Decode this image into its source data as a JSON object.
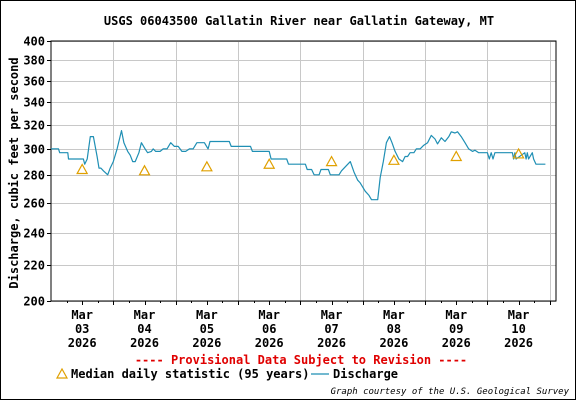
{
  "chart_data": {
    "type": "line",
    "title": "USGS 06043500 Gallatin River near Gallatin Gateway, MT",
    "ylabel": "Discharge, cubic feet per second",
    "xlabel": "",
    "ylim": [
      200,
      400
    ],
    "y_scale": "log",
    "y_ticks": [
      200,
      220,
      240,
      260,
      280,
      300,
      320,
      340,
      360,
      380,
      400
    ],
    "xlim": [
      0,
      8.1
    ],
    "x_ticks": [
      {
        "pos": 0.5,
        "month": "Mar",
        "day": "03",
        "year": "2026"
      },
      {
        "pos": 1.5,
        "month": "Mar",
        "day": "04",
        "year": "2026"
      },
      {
        "pos": 2.5,
        "month": "Mar",
        "day": "05",
        "year": "2026"
      },
      {
        "pos": 3.5,
        "month": "Mar",
        "day": "06",
        "year": "2026"
      },
      {
        "pos": 4.5,
        "month": "Mar",
        "day": "07",
        "year": "2026"
      },
      {
        "pos": 5.5,
        "month": "Mar",
        "day": "08",
        "year": "2026"
      },
      {
        "pos": 6.5,
        "month": "Mar",
        "day": "09",
        "year": "2026"
      },
      {
        "pos": 7.5,
        "month": "Mar",
        "day": "10",
        "year": "2026"
      }
    ],
    "grid": true,
    "series": [
      {
        "name": "Discharge",
        "color": "#1f8fb4",
        "x": [
          0,
          0.12,
          0.14,
          0.27,
          0.28,
          0.52,
          0.54,
          0.58,
          0.63,
          0.68,
          0.74,
          0.77,
          0.8,
          0.84,
          0.91,
          0.95,
          1.0,
          1.06,
          1.13,
          1.17,
          1.23,
          1.27,
          1.31,
          1.35,
          1.41,
          1.45,
          1.51,
          1.55,
          1.61,
          1.64,
          1.68,
          1.75,
          1.8,
          1.86,
          1.92,
          1.98,
          2.04,
          2.1,
          2.16,
          2.22,
          2.28,
          2.34,
          2.4,
          2.46,
          2.52,
          2.55,
          2.86,
          2.89,
          3.2,
          3.23,
          3.5,
          3.53,
          3.78,
          3.81,
          4.08,
          4.11,
          4.18,
          4.22,
          4.3,
          4.33,
          4.45,
          4.48,
          4.62,
          4.66,
          4.72,
          4.8,
          4.86,
          4.92,
          4.96,
          5.04,
          5.1,
          5.14,
          5.18,
          5.24,
          5.28,
          5.33,
          5.38,
          5.43,
          5.47,
          5.52,
          5.58,
          5.64,
          5.68,
          5.72,
          5.76,
          5.82,
          5.86,
          5.92,
          5.98,
          6.04,
          6.1,
          6.16,
          6.2,
          6.26,
          6.32,
          6.38,
          6.42,
          6.48,
          6.52,
          6.58,
          6.64,
          6.7,
          6.76,
          6.8,
          6.86,
          6.9,
          6.95,
          7.0,
          7.03,
          7.06,
          7.09,
          7.12,
          7.4,
          7.42,
          7.44,
          7.46,
          7.6,
          7.62,
          7.64,
          7.66,
          7.72,
          7.74,
          7.76,
          7.78,
          7.82,
          7.9,
          7.93
        ],
        "y": [
          300,
          300,
          297,
          297,
          292,
          292,
          288,
          292,
          310,
          310,
          294,
          285,
          285,
          283,
          280,
          285,
          290,
          300,
          315,
          305,
          298,
          295,
          290,
          290,
          297,
          305,
          300,
          297,
          298,
          300,
          298,
          298,
          300,
          300,
          305,
          302,
          302,
          298,
          298,
          300,
          300,
          305,
          305,
          305,
          300,
          306,
          306,
          302,
          302,
          298,
          298,
          292,
          292,
          288,
          288,
          284,
          284,
          280,
          280,
          284,
          284,
          280,
          280,
          283,
          286,
          290,
          282,
          276,
          274,
          268,
          265,
          262,
          262,
          262,
          278,
          290,
          305,
          310,
          305,
          298,
          292,
          290,
          294,
          294,
          297,
          297,
          300,
          300,
          303,
          305,
          311,
          308,
          304,
          309,
          306,
          310,
          314,
          313,
          314,
          310,
          305,
          300,
          298,
          299,
          297,
          297,
          297,
          297,
          292,
          297,
          292,
          297,
          297,
          292,
          297,
          292,
          297,
          292,
          297,
          292,
          297,
          292,
          290,
          288,
          288,
          288,
          288
        ]
      },
      {
        "name": "Median daily statistic (95 years)",
        "color": "#e0a000",
        "marker": "triangle",
        "x": [
          0.5,
          1.5,
          2.5,
          3.5,
          4.5,
          5.5,
          6.5,
          7.5
        ],
        "y": [
          284,
          283,
          286,
          288,
          290,
          291,
          294,
          296
        ]
      }
    ],
    "provisional_note": "---- Provisional Data Subject to Revision ----",
    "legend_position": "bottom-left",
    "credit": "Graph courtesy of the U.S. Geological Survey"
  }
}
